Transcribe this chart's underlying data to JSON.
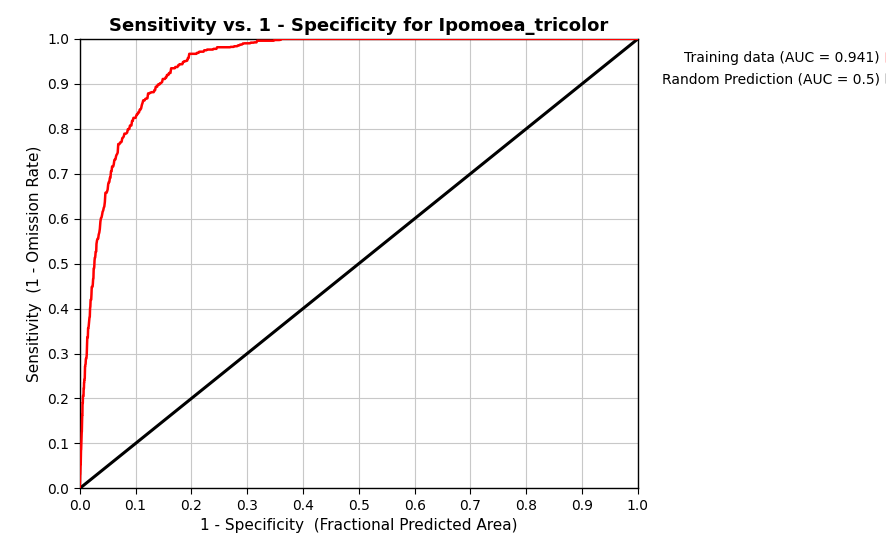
{
  "title": "Sensitivity vs. 1 - Specificity for Ipomoea_tricolor",
  "xlabel": "1 - Specificity  (Fractional Predicted Area)",
  "ylabel": "Sensitivity  (1 - Omission Rate)",
  "xlim": [
    0.0,
    1.0
  ],
  "ylim": [
    0.0,
    1.0
  ],
  "xticks": [
    0.0,
    0.1,
    0.2,
    0.3,
    0.4,
    0.5,
    0.6,
    0.7,
    0.8,
    0.9,
    1.0
  ],
  "yticks": [
    0.0,
    0.1,
    0.2,
    0.3,
    0.4,
    0.5,
    0.6,
    0.7,
    0.8,
    0.9,
    1.0
  ],
  "roc_color": "#FF0000",
  "random_color": "#000000",
  "roc_linewidth": 1.8,
  "random_linewidth": 2.2,
  "legend_label_roc": "Training data (AUC = 0.941)",
  "legend_label_random": "Random Prediction (AUC = 0.5)",
  "background_color": "#ffffff",
  "grid_color": "#c8c8c8",
  "title_fontsize": 13,
  "label_fontsize": 11,
  "tick_fontsize": 10,
  "legend_fontsize": 10,
  "roc_keypoints_x": [
    0.0,
    0.005,
    0.01,
    0.02,
    0.03,
    0.05,
    0.07,
    0.1,
    0.13,
    0.17,
    0.2,
    0.25,
    0.3,
    0.35,
    0.4,
    0.5,
    0.6,
    0.7,
    0.8,
    0.9,
    1.0
  ],
  "roc_keypoints_y": [
    0.0,
    0.18,
    0.27,
    0.42,
    0.54,
    0.67,
    0.76,
    0.83,
    0.88,
    0.93,
    0.96,
    0.975,
    0.988,
    0.994,
    0.997,
    0.999,
    1.0,
    1.0,
    1.0,
    1.0,
    1.0
  ]
}
